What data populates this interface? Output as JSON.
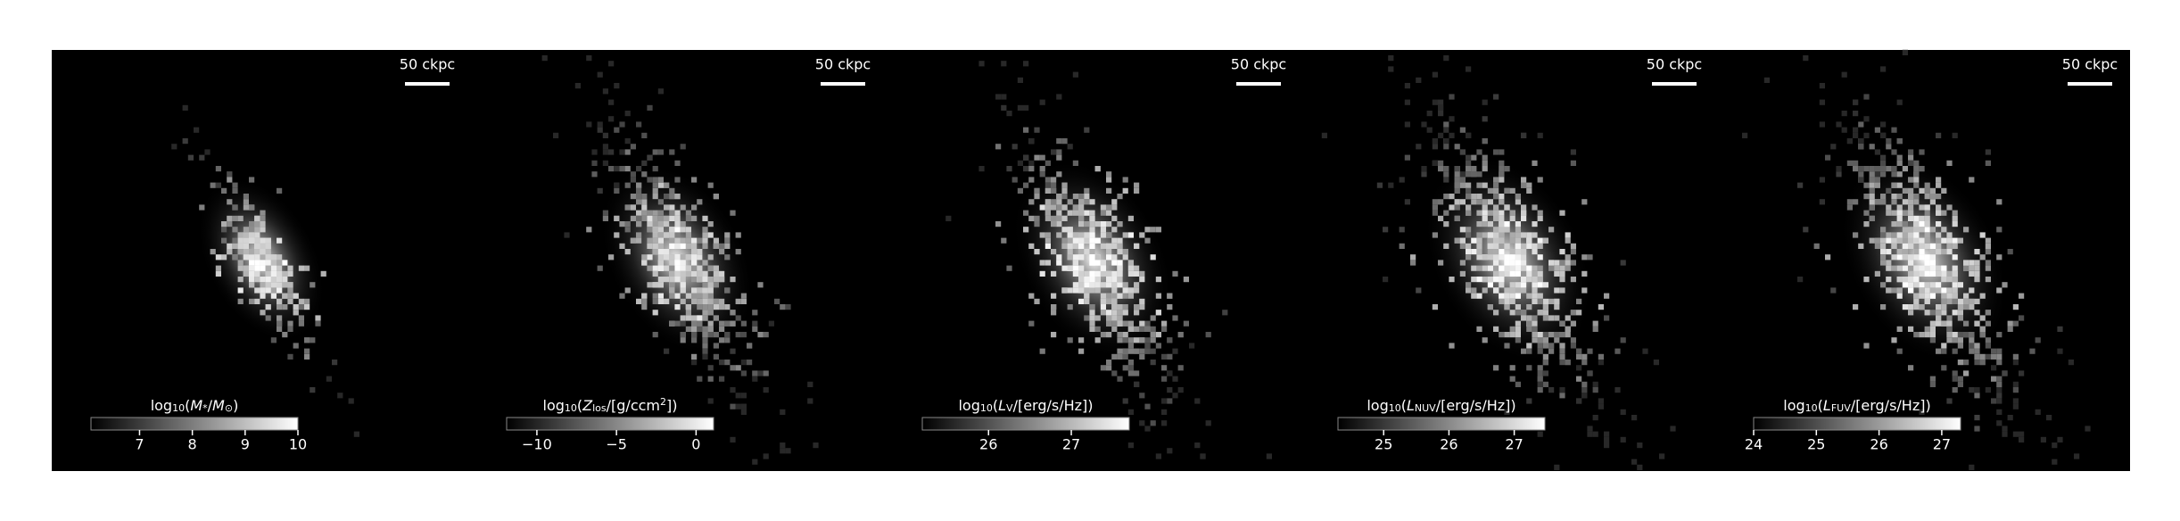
{
  "chart_data": {
    "type": "image-grid",
    "panels": [
      {
        "scalebar": "50 ckpc",
        "colorbar": {
          "label": [
            {
              "t": "log"
            },
            {
              "t": "10",
              "sub": true
            },
            {
              "t": "("
            },
            {
              "t": "M",
              "italic": true
            },
            {
              "t": "*",
              "sub": true
            },
            {
              "t": "/"
            },
            {
              "t": "M",
              "italic": true
            },
            {
              "t": "⊙",
              "sub": true
            },
            {
              "t": ")"
            }
          ],
          "clim": [
            6.08,
            10
          ],
          "ticks": [
            7,
            8,
            9,
            10
          ]
        }
      },
      {
        "scalebar": "50 ckpc",
        "colorbar": {
          "label": [
            {
              "t": "log"
            },
            {
              "t": "10",
              "sub": true
            },
            {
              "t": "("
            },
            {
              "t": "Z",
              "italic": true
            },
            {
              "t": "los",
              "sub": true
            },
            {
              "t": "/[g/ccm"
            },
            {
              "t": "2",
              "sup": true
            },
            {
              "t": "])"
            }
          ],
          "clim": [
            -11.9,
            1.1
          ],
          "ticks": [
            {
              "value": -10,
              "label": "−10"
            },
            {
              "value": -5,
              "label": "−5"
            },
            0
          ]
        }
      },
      {
        "scalebar": "50 ckpc",
        "colorbar": {
          "label": [
            {
              "t": "log"
            },
            {
              "t": "10",
              "sub": true
            },
            {
              "t": "("
            },
            {
              "t": "L",
              "italic": true
            },
            {
              "t": "V",
              "sub": true
            },
            {
              "t": "/[erg/s/Hz])"
            }
          ],
          "clim": [
            25.2,
            27.7
          ],
          "ticks": [
            26,
            27
          ]
        }
      },
      {
        "scalebar": "50 ckpc",
        "colorbar": {
          "label": [
            {
              "t": "log"
            },
            {
              "t": "10",
              "sub": true
            },
            {
              "t": "("
            },
            {
              "t": "L",
              "italic": true
            },
            {
              "t": "NUV",
              "sub": true
            },
            {
              "t": "/[erg/s/Hz])"
            }
          ],
          "clim": [
            24.3,
            27.47
          ],
          "ticks": [
            25,
            26,
            27
          ]
        }
      },
      {
        "scalebar": "50 ckpc",
        "colorbar": {
          "label": [
            {
              "t": "log"
            },
            {
              "t": "10",
              "sub": true
            },
            {
              "t": "("
            },
            {
              "t": "L",
              "italic": true
            },
            {
              "t": "FUV",
              "sub": true
            },
            {
              "t": "/[erg/s/Hz])"
            }
          ],
          "clim": [
            24,
            27.3
          ],
          "ticks": [
            24,
            25,
            26,
            27
          ]
        }
      }
    ]
  }
}
